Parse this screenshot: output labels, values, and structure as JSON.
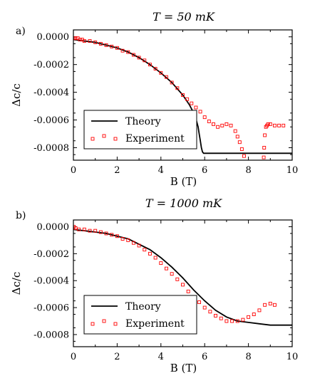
{
  "chart_data": [
    {
      "type": "line",
      "panel_label": "a)",
      "title": "T = 50 mK",
      "xlabel": "B (T)",
      "ylabel": "Δc/c",
      "xlim": [
        0,
        10
      ],
      "ylim": [
        -0.00089,
        5e-05
      ],
      "xticks": [
        "0",
        "2",
        "4",
        "6",
        "8",
        "10"
      ],
      "yticks": [
        "0.0000",
        "-0.0002",
        "-0.0004",
        "-0.0006",
        "-0.0008"
      ],
      "grid": false,
      "legend_position": "lower-left",
      "series": [
        {
          "name": "Theory",
          "style": "line",
          "color": "#000000",
          "x": [
            0,
            0.5,
            1,
            1.5,
            2,
            2.5,
            3,
            3.5,
            4,
            4.5,
            5,
            5.3,
            5.5,
            5.6,
            5.7,
            5.75,
            5.8,
            5.85,
            5.9,
            5.95,
            6.0,
            10
          ],
          "y": [
            -2e-05,
            -3e-05,
            -4e-05,
            -6e-05,
            -8e-05,
            -0.00011,
            -0.00015,
            -0.0002,
            -0.00026,
            -0.00033,
            -0.00042,
            -0.00049,
            -0.00055,
            -0.00059,
            -0.00065,
            -0.0007,
            -0.00075,
            -0.0008,
            -0.00083,
            -0.00084,
            -0.00084,
            -0.00084
          ]
        },
        {
          "name": "Experiment",
          "style": "markers",
          "color": "#ff0000",
          "x": [
            0.02,
            0.1,
            0.2,
            0.3,
            0.4,
            0.5,
            0.75,
            1,
            1.25,
            1.5,
            1.75,
            2,
            2.25,
            2.5,
            2.75,
            3,
            3.25,
            3.5,
            3.75,
            4,
            4.25,
            4.5,
            4.75,
            5,
            5.2,
            5.4,
            5.6,
            5.8,
            6.0,
            6.2,
            6.4,
            6.6,
            6.8,
            7.0,
            7.2,
            7.4,
            7.5,
            7.6,
            7.7,
            7.8,
            7.9,
            8.7,
            8.72,
            8.75,
            8.8,
            8.85,
            8.9,
            9.0,
            9.2,
            9.4,
            9.6
          ],
          "y": [
            -1e-05,
            -1e-05,
            -1e-05,
            -2e-05,
            -2e-05,
            -3e-05,
            -3e-05,
            -4e-05,
            -5e-05,
            -6e-05,
            -7e-05,
            -8e-05,
            -0.0001,
            -0.00011,
            -0.00013,
            -0.00015,
            -0.00017,
            -0.0002,
            -0.00023,
            -0.00026,
            -0.00029,
            -0.00033,
            -0.00037,
            -0.00042,
            -0.00045,
            -0.00048,
            -0.00051,
            -0.00054,
            -0.00058,
            -0.00061,
            -0.00063,
            -0.00065,
            -0.00064,
            -0.00063,
            -0.00064,
            -0.00068,
            -0.00072,
            -0.00076,
            -0.00081,
            -0.00086,
            -0.0009,
            -0.00087,
            -0.0008,
            -0.00071,
            -0.00065,
            -0.00064,
            -0.00063,
            -0.00063,
            -0.00064,
            -0.00064,
            -0.00064
          ]
        }
      ]
    },
    {
      "type": "line",
      "panel_label": "b)",
      "title": "T = 1000 mK",
      "xlabel": "B (T)",
      "ylabel": "Δc/c",
      "xlim": [
        0,
        10
      ],
      "ylim": [
        -0.00089,
        5e-05
      ],
      "xticks": [
        "0",
        "2",
        "4",
        "6",
        "8",
        "10"
      ],
      "yticks": [
        "0.0000",
        "-0.0002",
        "-0.0004",
        "-0.0006",
        "-0.0008"
      ],
      "grid": false,
      "legend_position": "lower-left",
      "series": [
        {
          "name": "Theory",
          "style": "line",
          "color": "#000000",
          "x": [
            0,
            0.5,
            1,
            1.5,
            2,
            2.5,
            3,
            3.5,
            4,
            4.5,
            5,
            5.5,
            6,
            6.5,
            7,
            7.5,
            8,
            8.5,
            9,
            9.5,
            10
          ],
          "y": [
            -2e-05,
            -3e-05,
            -4e-05,
            -5e-05,
            -7e-05,
            -9e-05,
            -0.00013,
            -0.00017,
            -0.00023,
            -0.0003,
            -0.00038,
            -0.00047,
            -0.00055,
            -0.00062,
            -0.00067,
            -0.0007,
            -0.00071,
            -0.00072,
            -0.00073,
            -0.00073,
            -0.00073
          ]
        },
        {
          "name": "Experiment",
          "style": "markers",
          "color": "#ff0000",
          "x": [
            0.02,
            0.1,
            0.25,
            0.5,
            0.75,
            1,
            1.25,
            1.5,
            1.75,
            2,
            2.25,
            2.5,
            2.75,
            3,
            3.25,
            3.5,
            3.75,
            4,
            4.25,
            4.5,
            4.75,
            5,
            5.25,
            5.5,
            5.75,
            6,
            6.25,
            6.5,
            6.75,
            7,
            7.25,
            7.5,
            7.75,
            8,
            8.25,
            8.5,
            8.75,
            9,
            9.2
          ],
          "y": [
            0.0,
            -1e-05,
            -2e-05,
            -2e-05,
            -3e-05,
            -3e-05,
            -4e-05,
            -5e-05,
            -6e-05,
            -7e-05,
            -9e-05,
            -0.0001,
            -0.00012,
            -0.00014,
            -0.00017,
            -0.0002,
            -0.00023,
            -0.00027,
            -0.00031,
            -0.00035,
            -0.00039,
            -0.00043,
            -0.00048,
            -0.00052,
            -0.00056,
            -0.0006,
            -0.00063,
            -0.00066,
            -0.00068,
            -0.0007,
            -0.0007,
            -0.0007,
            -0.00069,
            -0.00067,
            -0.00065,
            -0.00062,
            -0.00058,
            -0.00057,
            -0.00058
          ]
        }
      ]
    }
  ]
}
